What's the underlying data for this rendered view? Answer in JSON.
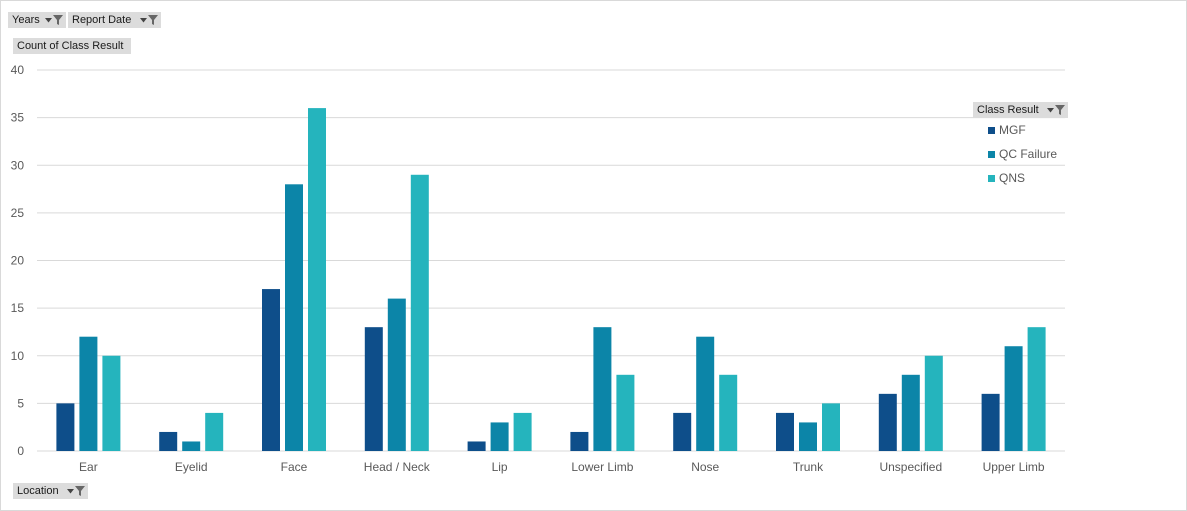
{
  "filters": {
    "years_label": "Years",
    "report_date_label": "Report Date",
    "value_field_label": "Count of Class Result",
    "axis_field_label": "Location",
    "legend_field_label": "Class Result"
  },
  "colors": {
    "MGF": "#0e4e8a",
    "QC Failure": "#0c85a8",
    "QNS": "#25b4bd",
    "gridline": "#d9d9d9",
    "axis_text": "#595959",
    "field_button": "#dcdcdc"
  },
  "icons": {
    "dropdown": "dropdown-arrow-icon",
    "filter": "filter-funnel-icon"
  },
  "chart_data": {
    "type": "bar",
    "categories": [
      "Ear",
      "Eyelid",
      "Face",
      "Head / Neck",
      "Lip",
      "Lower Limb",
      "Nose",
      "Trunk",
      "Unspecified",
      "Upper Limb"
    ],
    "series": [
      {
        "name": "MGF",
        "values": [
          5,
          2,
          17,
          13,
          1,
          2,
          4,
          4,
          6,
          6
        ]
      },
      {
        "name": "QC Failure",
        "values": [
          12,
          1,
          28,
          16,
          3,
          13,
          12,
          3,
          8,
          11
        ]
      },
      {
        "name": "QNS",
        "values": [
          10,
          4,
          36,
          29,
          4,
          8,
          8,
          5,
          10,
          13
        ]
      }
    ],
    "ylim": [
      0,
      40
    ],
    "yticks": [
      0,
      5,
      10,
      15,
      20,
      25,
      30,
      35,
      40
    ],
    "grid": true,
    "legend_position": "right",
    "title": "",
    "xlabel": "",
    "ylabel": ""
  }
}
